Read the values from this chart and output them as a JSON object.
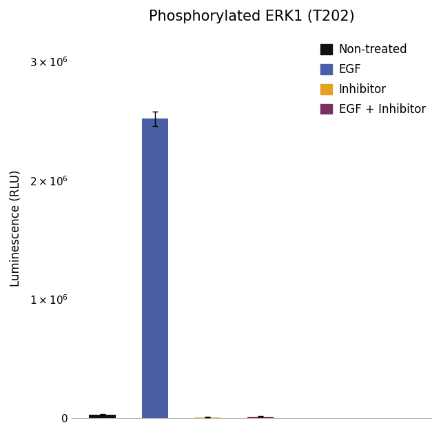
{
  "title": "Phosphorylated ERK1 (T202)",
  "ylabel": "Luminescence (RLU)",
  "categories": [
    "Non-treated",
    "EGF",
    "Inhibitor",
    "EGF + Inhibitor"
  ],
  "values": [
    30000,
    2520000,
    8000,
    15000
  ],
  "errors": [
    5000,
    60000,
    2000,
    3000
  ],
  "bar_colors": [
    "#111111",
    "#4a5fa5",
    "#e8a020",
    "#7a3060"
  ],
  "legend_labels": [
    "Non-treated",
    "EGF",
    "Inhibitor",
    "EGF + Inhibitor"
  ],
  "ylim": [
    0,
    3200000
  ],
  "yticks": [
    0,
    1000000,
    2000000,
    3000000
  ],
  "bar_width": 0.6,
  "title_fontsize": 15,
  "label_fontsize": 12,
  "tick_fontsize": 11,
  "legend_fontsize": 12,
  "background_color": "#ffffff",
  "x_positions": [
    1.0,
    2.2,
    3.4,
    4.6
  ],
  "xlim": [
    0.3,
    8.5
  ]
}
